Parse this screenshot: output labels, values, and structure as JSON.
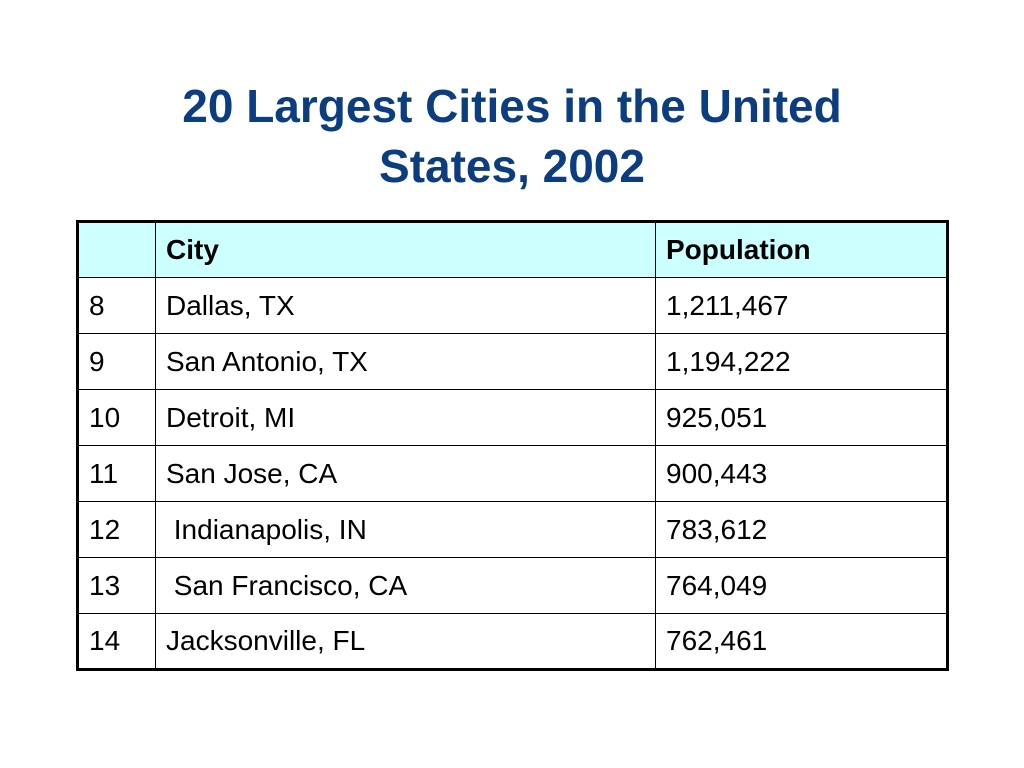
{
  "slide": {
    "title_line1": "20 Largest Cities in the United",
    "title_line2": "States, 2002"
  },
  "table": {
    "header": {
      "rank": "",
      "city": "City",
      "population": "Population"
    },
    "rows": [
      {
        "rank": "8",
        "city": "Dallas, TX",
        "population": "1,211,467"
      },
      {
        "rank": "9",
        "city": "San Antonio, TX",
        "population": "1,194,222"
      },
      {
        "rank": "10",
        "city": "Detroit, MI",
        "population": "925,051"
      },
      {
        "rank": "11",
        "city": "San Jose, CA",
        "population": "900,443"
      },
      {
        "rank": "12",
        "city": " Indianapolis, IN",
        "population": "783,612"
      },
      {
        "rank": "13",
        "city": " San Francisco, CA",
        "population": "764,049"
      },
      {
        "rank": "14",
        "city": "Jacksonville, FL",
        "population": "762,461"
      }
    ]
  },
  "colors": {
    "title": "#0b3d80",
    "header_fill": "#ccffff"
  }
}
